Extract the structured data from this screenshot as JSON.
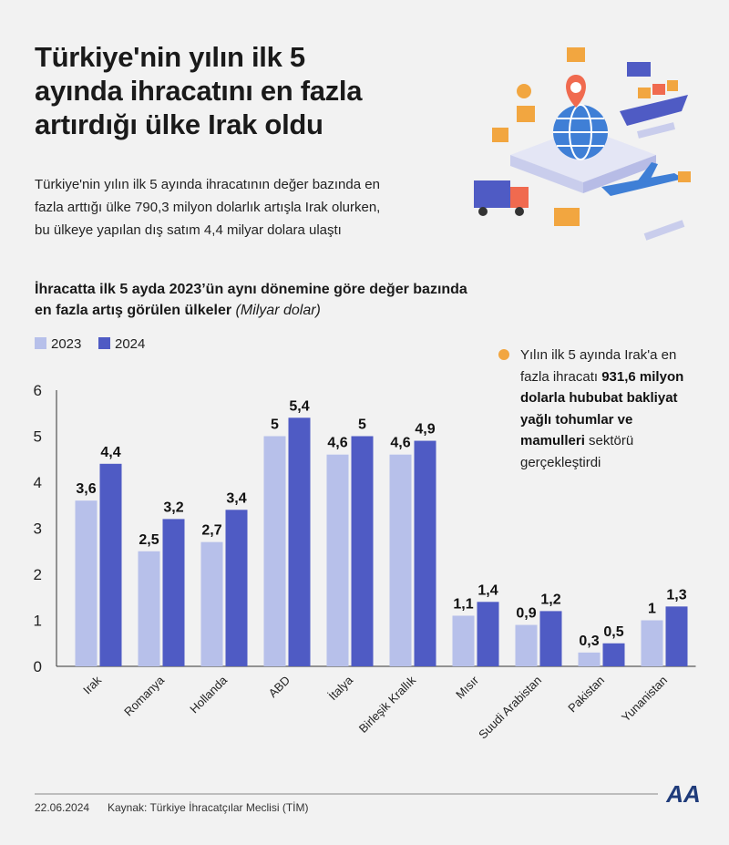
{
  "header": {
    "title": [
      "Türkiye'nin yılın ilk 5",
      "ayında ihracatını en fazla",
      "artırdığı ülke Irak oldu"
    ],
    "subtitle": [
      "Türkiye'nin yılın ilk 5 ayında ihracatının değer bazında en",
      "fazla arttığı ülke 790,3 milyon dolarlık artışla Irak olurken,",
      "bu ülkeye yapılan dış satım 4,4 milyar dolara ulaştı"
    ]
  },
  "chart_data": {
    "type": "bar",
    "title": [
      "İhracatta ilk 5 ayda 2023’ün aynı dönemine göre değer bazında",
      "en fazla artış görülen ülkeler"
    ],
    "unit": "(Milyar dolar)",
    "categories": [
      "Irak",
      "Romanya",
      "Hollanda",
      "ABD",
      "İtalya",
      "Birleşik Krallık",
      "Mısır",
      "Suudi Arabistan",
      "Pakistan",
      "Yunanistan"
    ],
    "series": [
      {
        "name": "2023",
        "color": "#b7c0ea",
        "values": [
          3.6,
          2.5,
          2.7,
          5,
          4.6,
          4.6,
          1.1,
          0.9,
          0.3,
          1
        ],
        "value_labels": [
          "3,6",
          "2,5",
          "2,7",
          "5",
          "4,6",
          "4,6",
          "1,1",
          "0,9",
          "0,3",
          "1"
        ]
      },
      {
        "name": "2024",
        "color": "#4f5bc4",
        "values": [
          4.4,
          3.2,
          3.4,
          5.4,
          5,
          4.9,
          1.4,
          1.2,
          0.5,
          1.3
        ],
        "value_labels": [
          "4,4",
          "3,2",
          "3,4",
          "5,4",
          "5",
          "4,9",
          "1,4",
          "1,2",
          "0,5",
          "1,3"
        ]
      }
    ],
    "ylim": [
      0,
      6
    ],
    "yticks": [
      0,
      1,
      2,
      3,
      4,
      5,
      6
    ],
    "grid": false,
    "annotation": {
      "text_1": "Yılın ilk 5 ayında Irak'a en fazla ihracatı",
      "bold": "931,6 milyon dolarla hububat bakliyat yağlı tohumlar ve mamulleri",
      "text_2": "sektörü gerçekleştirdi"
    }
  },
  "footer": {
    "date": "22.06.2024",
    "source": "Kaynak: Türkiye İhracatçılar Meclisi (TİM)",
    "logo": "AA"
  }
}
